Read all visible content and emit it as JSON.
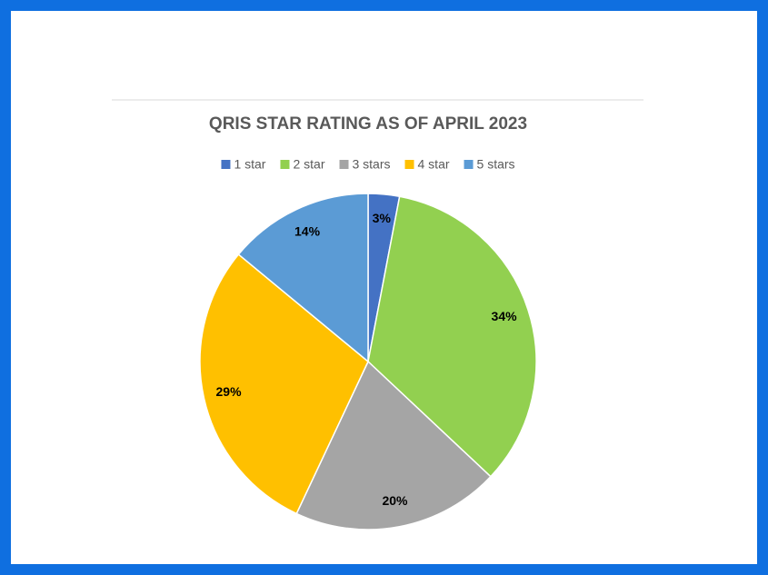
{
  "chart_data": {
    "type": "pie",
    "title": "QRIS STAR RATING AS OF APRIL 2023",
    "categories": [
      "1 star",
      "2 star",
      "3 stars",
      "4 star",
      "5 stars"
    ],
    "values": [
      3,
      34,
      20,
      29,
      14
    ],
    "value_labels": [
      "3%",
      "34%",
      "20%",
      "29%",
      "14%"
    ],
    "colors": [
      "#4472c4",
      "#92d050",
      "#a5a5a5",
      "#ffc000",
      "#5b9bd5"
    ],
    "legend": "top"
  }
}
